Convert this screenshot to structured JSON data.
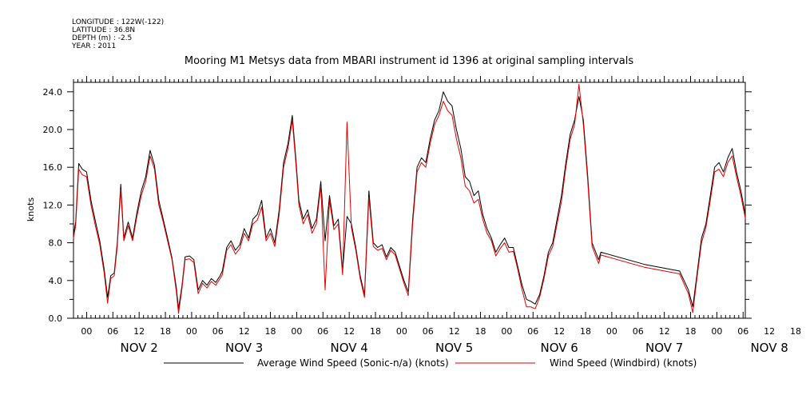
{
  "metadata": {
    "longitude": "LONGITUDE : 122W(-122)",
    "latitude": "LATITUDE : 36.8N",
    "depth": "DEPTH (m) : -2.5",
    "year": "YEAR : 2011"
  },
  "chart_data": {
    "type": "line",
    "title": "Mooring M1 Metsys data from MBARI instrument id 1396 at original sampling intervals",
    "ylabel": "knots",
    "xlabel": "",
    "ylim": [
      0,
      25
    ],
    "xlim_hours": [
      -3,
      150.5
    ],
    "x_unit": "hours since NOV 2 00:00",
    "y_tick_labels": [
      "0.0",
      "4.0",
      "8.0",
      "12.0",
      "16.0",
      "20.0",
      "24.0"
    ],
    "x_tick_labels": [
      "00",
      "06",
      "12",
      "18",
      "00",
      "06",
      "12",
      "18",
      "00",
      "06",
      "12",
      "18",
      "00",
      "06",
      "12",
      "18",
      "00",
      "06",
      "12",
      "18",
      "00",
      "06",
      "12",
      "18",
      "00",
      "06",
      "12",
      "18"
    ],
    "day_labels": [
      "NOV  2",
      "NOV  3",
      "NOV  4",
      "NOV  5",
      "NOV  6",
      "NOV  7",
      "NOV  8"
    ],
    "legend_placement": "bottom",
    "grid": false,
    "series": [
      {
        "name": "Average Wind Speed (Sonic-n/a) (knots)",
        "color": "#000000",
        "points": [
          [
            -3,
            8.8
          ],
          [
            -2.5,
            10.2
          ],
          [
            -1.8,
            16.4
          ],
          [
            -1,
            15.8
          ],
          [
            0,
            15.5
          ],
          [
            1,
            12.5
          ],
          [
            2,
            10.3
          ],
          [
            3,
            8.2
          ],
          [
            4,
            5.2
          ],
          [
            4.8,
            2.2
          ],
          [
            5.5,
            4.5
          ],
          [
            6.3,
            4.8
          ],
          [
            7,
            8
          ],
          [
            7.8,
            14.2
          ],
          [
            8.5,
            8.5
          ],
          [
            9.5,
            10.2
          ],
          [
            10.5,
            8.5
          ],
          [
            11.5,
            11.2
          ],
          [
            12.5,
            13.5
          ],
          [
            13.5,
            15
          ],
          [
            14.5,
            17.8
          ],
          [
            15.5,
            16.2
          ],
          [
            16.5,
            12.5
          ],
          [
            17.5,
            10.5
          ],
          [
            18.5,
            8.5
          ],
          [
            19.5,
            6.4
          ],
          [
            20.5,
            3.2
          ],
          [
            21,
            1
          ],
          [
            21.8,
            3.5
          ],
          [
            22.5,
            6.5
          ],
          [
            23.5,
            6.6
          ],
          [
            24.5,
            6.2
          ],
          [
            25.5,
            3
          ],
          [
            26.5,
            4
          ],
          [
            27.5,
            3.5
          ],
          [
            28.5,
            4.2
          ],
          [
            29.5,
            3.8
          ],
          [
            30.5,
            4.5
          ],
          [
            31,
            5
          ],
          [
            32,
            7.5
          ],
          [
            33,
            8.2
          ],
          [
            34,
            7.2
          ],
          [
            35,
            7.8
          ],
          [
            36,
            9.5
          ],
          [
            37,
            8.5
          ],
          [
            38,
            10.5
          ],
          [
            39,
            11
          ],
          [
            40,
            12.5
          ],
          [
            41,
            8.5
          ],
          [
            42,
            9.5
          ],
          [
            43,
            8
          ],
          [
            44,
            11.5
          ],
          [
            45,
            16.5
          ],
          [
            46,
            18.5
          ],
          [
            47,
            21.5
          ],
          [
            47.8,
            17
          ],
          [
            48.5,
            12.5
          ],
          [
            49.5,
            10.5
          ],
          [
            50.5,
            11.5
          ],
          [
            51.5,
            9.5
          ],
          [
            52.5,
            10.5
          ],
          [
            53.5,
            14.5
          ],
          [
            54.5,
            8.2
          ],
          [
            55.5,
            13
          ],
          [
            56.5,
            9.8
          ],
          [
            57.5,
            10.5
          ],
          [
            58.5,
            5
          ],
          [
            59.5,
            10.8
          ],
          [
            60.5,
            10
          ],
          [
            61.5,
            7.5
          ],
          [
            62.5,
            4.5
          ],
          [
            63.5,
            2.5
          ],
          [
            64.5,
            13.5
          ],
          [
            65.5,
            8
          ],
          [
            66.5,
            7.5
          ],
          [
            67.5,
            7.8
          ],
          [
            68.5,
            6.5
          ],
          [
            69.5,
            7.5
          ],
          [
            70.5,
            7
          ],
          [
            71.5,
            5.5
          ],
          [
            72.5,
            4
          ],
          [
            73.5,
            2.8
          ],
          [
            74.5,
            10.5
          ],
          [
            75.5,
            16
          ],
          [
            76.5,
            17
          ],
          [
            77.5,
            16.5
          ],
          [
            78.5,
            19
          ],
          [
            79.5,
            21
          ],
          [
            80.5,
            22
          ],
          [
            81.5,
            24
          ],
          [
            82.5,
            23
          ],
          [
            83.5,
            22.5
          ],
          [
            84.5,
            20
          ],
          [
            85.5,
            18
          ],
          [
            86.5,
            15
          ],
          [
            87.5,
            14.5
          ],
          [
            88.5,
            13
          ],
          [
            89.5,
            13.5
          ],
          [
            90.5,
            11
          ],
          [
            91.5,
            9.5
          ],
          [
            92.5,
            8.5
          ],
          [
            93.5,
            7
          ],
          [
            94.5,
            7.8
          ],
          [
            95.5,
            8.5
          ],
          [
            96.5,
            7.5
          ],
          [
            97.5,
            7.5
          ],
          [
            98.5,
            5.5
          ],
          [
            99.5,
            3.5
          ],
          [
            100.5,
            2
          ],
          [
            101.5,
            1.8
          ],
          [
            102.5,
            1.5
          ],
          [
            103.5,
            2.5
          ],
          [
            104.5,
            4.5
          ],
          [
            105.5,
            7
          ],
          [
            106.5,
            8
          ],
          [
            107.5,
            10.5
          ],
          [
            108.5,
            13
          ],
          [
            109.5,
            16.5
          ],
          [
            110.5,
            19.5
          ],
          [
            111.5,
            21
          ],
          [
            112.5,
            23.5
          ],
          [
            113.5,
            21
          ],
          [
            114.5,
            15
          ],
          [
            115.5,
            8
          ],
          [
            116.5,
            6.8
          ],
          [
            117,
            6.2
          ],
          [
            117.5,
            7
          ],
          [
            127.5,
            5.7
          ],
          [
            135.5,
            5
          ],
          [
            137.5,
            3
          ],
          [
            138.5,
            1.2
          ],
          [
            139.5,
            4.8
          ],
          [
            140.5,
            8.5
          ],
          [
            141.5,
            10
          ],
          [
            142.5,
            13
          ],
          [
            143.5,
            16
          ],
          [
            144.5,
            16.5
          ],
          [
            145.5,
            15.5
          ],
          [
            146.5,
            17
          ],
          [
            147.5,
            18
          ],
          [
            148.5,
            15.5
          ],
          [
            149.5,
            13.5
          ],
          [
            150.5,
            11
          ]
        ]
      },
      {
        "name": "Wind Speed (Windbird) (knots)",
        "color": "#e00000",
        "points": [
          [
            -3,
            8.5
          ],
          [
            -2.5,
            9.8
          ],
          [
            -1.8,
            15.8
          ],
          [
            -1,
            15.2
          ],
          [
            0,
            15
          ],
          [
            1,
            12
          ],
          [
            2,
            9.8
          ],
          [
            3,
            7.8
          ],
          [
            4,
            4.8
          ],
          [
            4.8,
            1.6
          ],
          [
            5.5,
            4.2
          ],
          [
            6.3,
            4.5
          ],
          [
            7,
            7.6
          ],
          [
            7.8,
            13.6
          ],
          [
            8.5,
            8.2
          ],
          [
            9.5,
            9.8
          ],
          [
            10.5,
            8.2
          ],
          [
            11.5,
            10.8
          ],
          [
            12.5,
            13
          ],
          [
            13.5,
            14.5
          ],
          [
            14.5,
            17.2
          ],
          [
            15.5,
            15.8
          ],
          [
            16.5,
            12
          ],
          [
            17.5,
            10.2
          ],
          [
            18.5,
            8.2
          ],
          [
            19.5,
            6.2
          ],
          [
            20.5,
            2.8
          ],
          [
            21,
            0.5
          ],
          [
            21.8,
            3.2
          ],
          [
            22.5,
            6.2
          ],
          [
            23.5,
            6.3
          ],
          [
            24.5,
            5.9
          ],
          [
            25.5,
            2.6
          ],
          [
            26.5,
            3.7
          ],
          [
            27.5,
            3.2
          ],
          [
            28.5,
            3.9
          ],
          [
            29.5,
            3.5
          ],
          [
            30.5,
            4.2
          ],
          [
            31,
            4.6
          ],
          [
            32,
            7.2
          ],
          [
            33,
            7.8
          ],
          [
            34,
            6.8
          ],
          [
            35,
            7.4
          ],
          [
            36,
            9
          ],
          [
            37,
            8.2
          ],
          [
            38,
            10
          ],
          [
            39,
            10.4
          ],
          [
            40,
            11.8
          ],
          [
            41,
            8.2
          ],
          [
            42,
            9
          ],
          [
            43,
            7.6
          ],
          [
            44,
            11
          ],
          [
            45,
            16
          ],
          [
            46,
            18
          ],
          [
            47,
            21
          ],
          [
            47.8,
            16.5
          ],
          [
            48.5,
            12
          ],
          [
            49.5,
            10
          ],
          [
            50.5,
            11
          ],
          [
            51.5,
            9
          ],
          [
            52.5,
            10
          ],
          [
            53.5,
            14
          ],
          [
            54.5,
            3
          ],
          [
            55.5,
            12.5
          ],
          [
            56.5,
            9.4
          ],
          [
            57.5,
            10
          ],
          [
            58.5,
            4.6
          ],
          [
            59.5,
            20.8
          ],
          [
            60.5,
            9.6
          ],
          [
            61.5,
            7.2
          ],
          [
            62.5,
            4.2
          ],
          [
            63.5,
            2.2
          ],
          [
            64.5,
            12.8
          ],
          [
            65.5,
            7.6
          ],
          [
            66.5,
            7.2
          ],
          [
            67.5,
            7.4
          ],
          [
            68.5,
            6.2
          ],
          [
            69.5,
            7.2
          ],
          [
            70.5,
            6.7
          ],
          [
            71.5,
            5.2
          ],
          [
            72.5,
            3.7
          ],
          [
            73.5,
            2.4
          ],
          [
            74.5,
            10
          ],
          [
            75.5,
            15.5
          ],
          [
            76.5,
            16.5
          ],
          [
            77.5,
            16
          ],
          [
            78.5,
            18.5
          ],
          [
            79.5,
            20.5
          ],
          [
            80.5,
            21.5
          ],
          [
            81.5,
            23
          ],
          [
            82.5,
            22
          ],
          [
            83.5,
            21.5
          ],
          [
            84.5,
            19
          ],
          [
            85.5,
            17
          ],
          [
            86.5,
            14
          ],
          [
            87.5,
            13.5
          ],
          [
            88.5,
            12.2
          ],
          [
            89.5,
            12.6
          ],
          [
            90.5,
            10.5
          ],
          [
            91.5,
            9
          ],
          [
            92.5,
            8.2
          ],
          [
            93.5,
            6.6
          ],
          [
            94.5,
            7.4
          ],
          [
            95.5,
            8
          ],
          [
            96.5,
            7
          ],
          [
            97.5,
            7.1
          ],
          [
            98.5,
            5.2
          ],
          [
            99.5,
            3
          ],
          [
            100.5,
            1.2
          ],
          [
            101.5,
            1.2
          ],
          [
            102.5,
            1
          ],
          [
            103.5,
            2.2
          ],
          [
            104.5,
            4.2
          ],
          [
            105.5,
            6.6
          ],
          [
            106.5,
            7.6
          ],
          [
            107.5,
            10
          ],
          [
            108.5,
            12.4
          ],
          [
            109.5,
            16
          ],
          [
            110.5,
            19
          ],
          [
            111.5,
            20.5
          ],
          [
            112.5,
            24.8
          ],
          [
            113.5,
            20.5
          ],
          [
            114.5,
            14.5
          ],
          [
            115.5,
            7.6
          ],
          [
            116.5,
            6.4
          ],
          [
            117,
            5.8
          ],
          [
            117.5,
            6.7
          ],
          [
            127.5,
            5.4
          ],
          [
            135.5,
            4.7
          ],
          [
            137.5,
            2.6
          ],
          [
            138.5,
            0.6
          ],
          [
            139.5,
            4.4
          ],
          [
            140.5,
            8
          ],
          [
            141.5,
            9.6
          ],
          [
            142.5,
            12.5
          ],
          [
            143.5,
            15.5
          ],
          [
            144.5,
            15.8
          ],
          [
            145.5,
            15
          ],
          [
            146.5,
            16.5
          ],
          [
            147.5,
            17.2
          ],
          [
            148.5,
            15
          ],
          [
            149.5,
            13
          ],
          [
            150.5,
            10.6
          ]
        ]
      }
    ]
  }
}
